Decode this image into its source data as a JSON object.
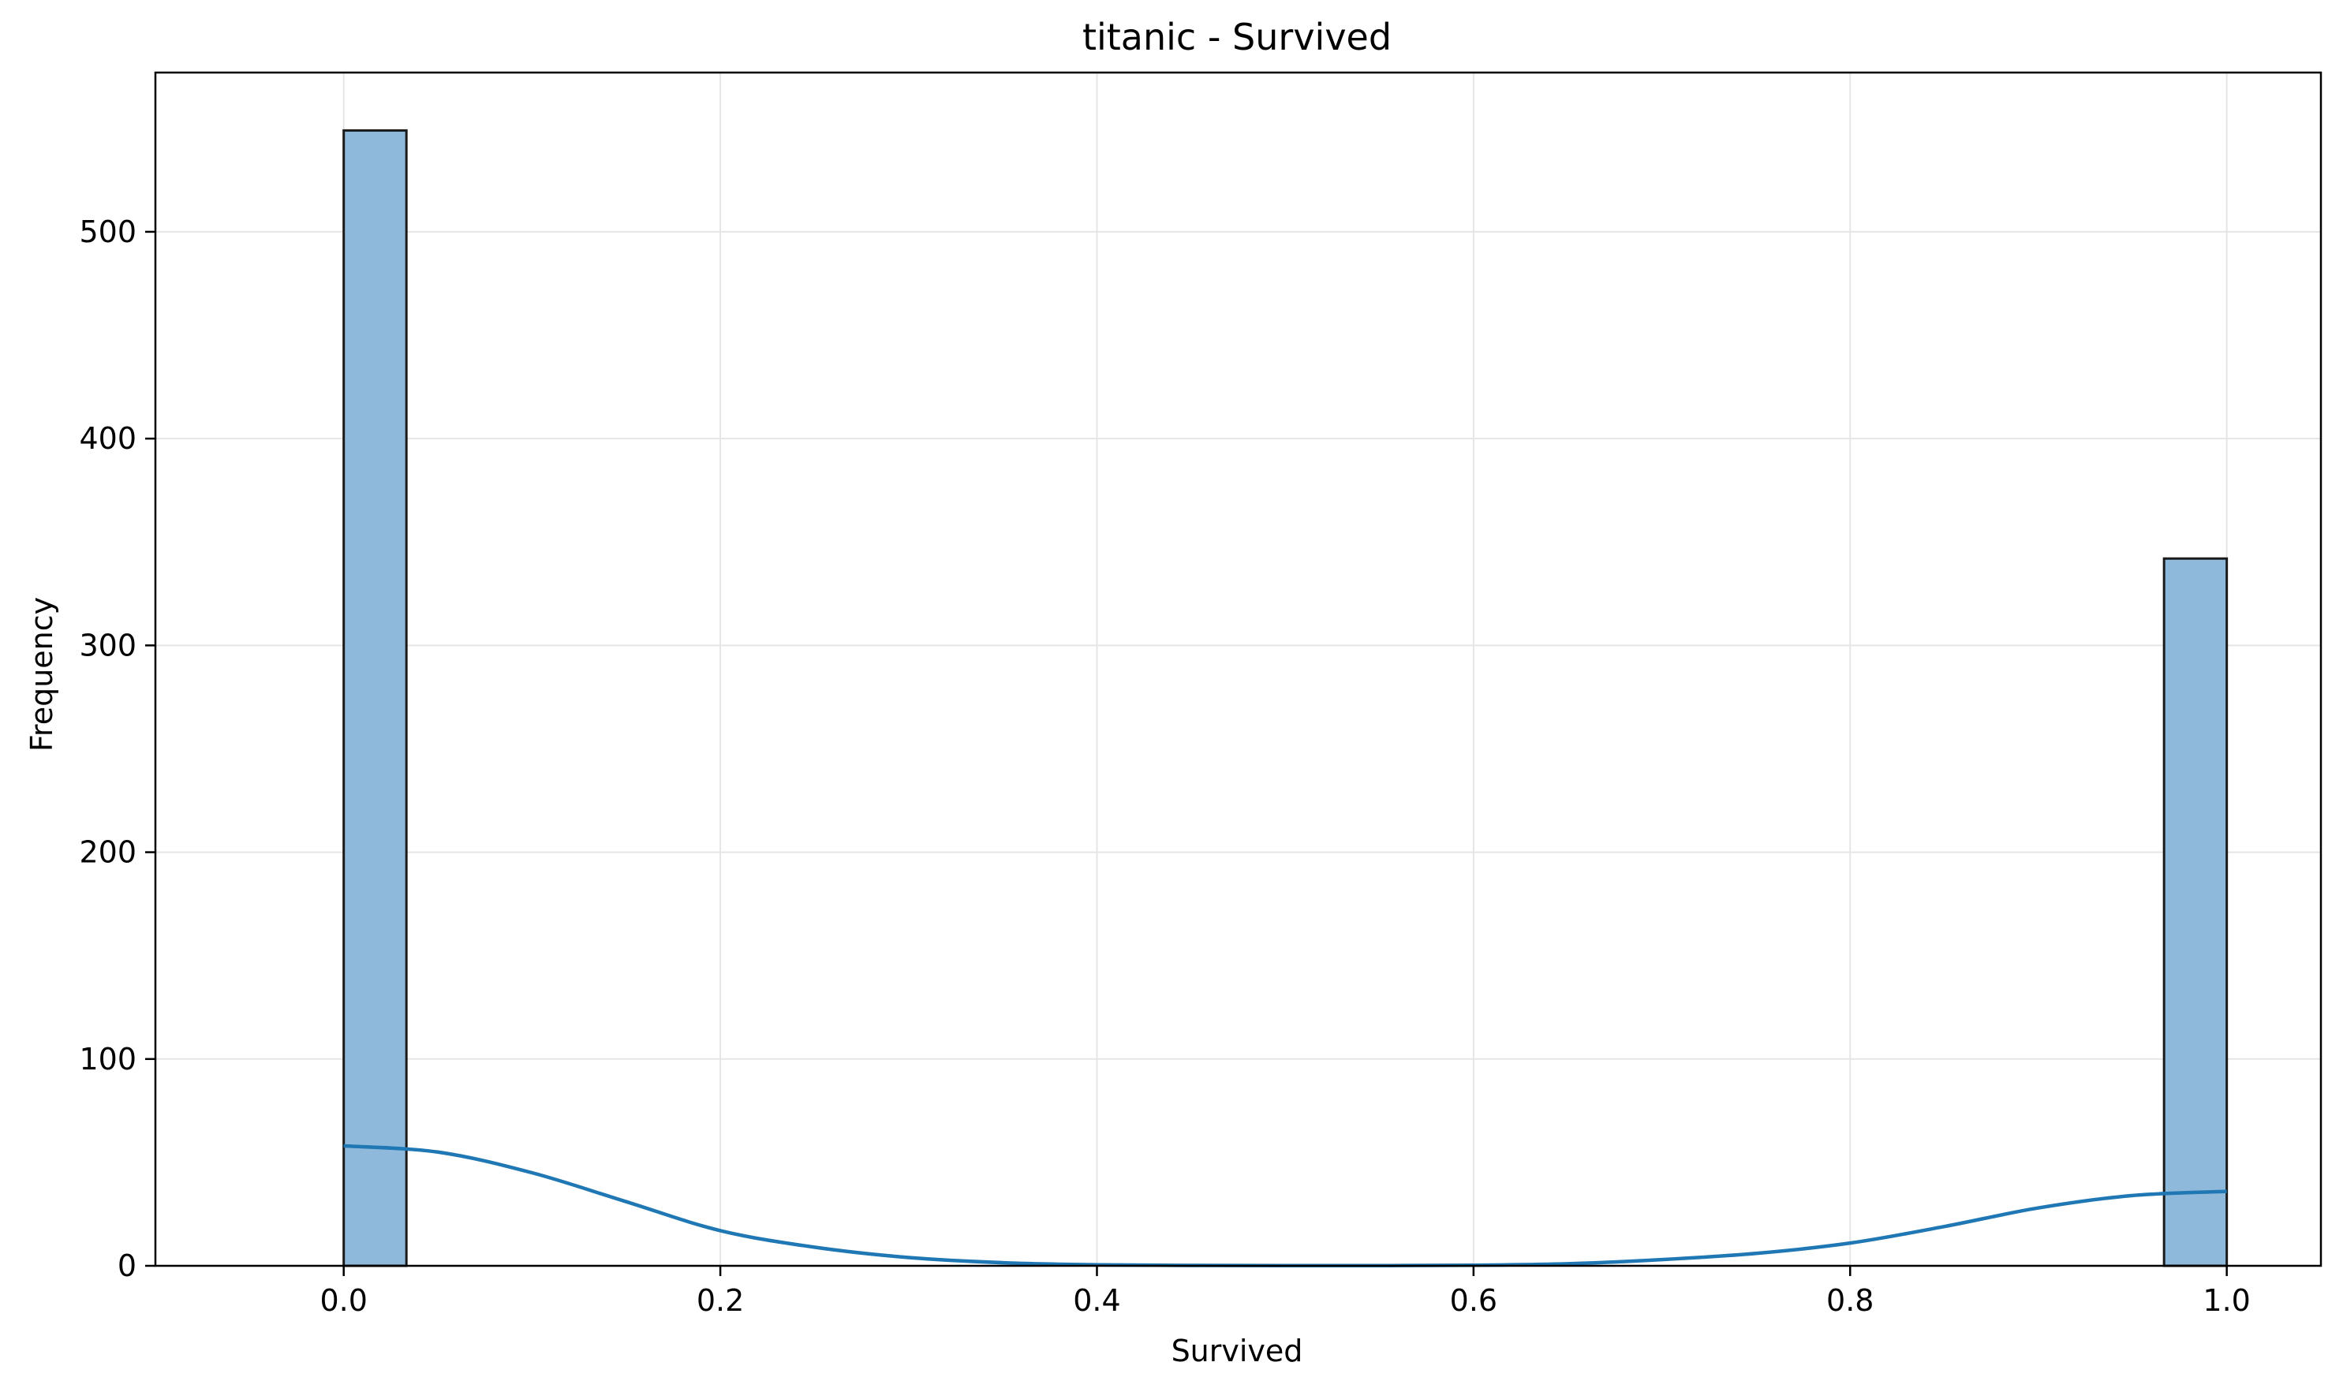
{
  "chart_data": {
    "type": "bar",
    "subtype": "histogram-with-kde",
    "title": "titanic - Survived",
    "xlabel": "Survived",
    "ylabel": "Frequency",
    "xlim": [
      -0.1,
      1.05
    ],
    "ylim": [
      0,
      577
    ],
    "xticks": [
      0.0,
      0.2,
      0.4,
      0.6,
      0.8,
      1.0
    ],
    "xtick_labels": [
      "0.0",
      "0.2",
      "0.4",
      "0.6",
      "0.8",
      "1.0"
    ],
    "yticks": [
      0,
      100,
      200,
      300,
      400,
      500
    ],
    "ytick_labels": [
      "0",
      "100",
      "200",
      "300",
      "400",
      "500"
    ],
    "grid": true,
    "colors": {
      "bar_fill": "#8fb9da",
      "bar_edge": "#1a1a1a",
      "kde_line": "#1f77b4",
      "grid": "#e5e5e5"
    },
    "bins": [
      {
        "x0": 0.0,
        "x1": 0.0333,
        "count": 549
      },
      {
        "x0": 0.9667,
        "x1": 1.0,
        "count": 342
      }
    ],
    "kde": {
      "x": [
        0.0,
        0.05,
        0.1,
        0.15,
        0.2,
        0.25,
        0.3,
        0.35,
        0.4,
        0.45,
        0.5,
        0.55,
        0.6,
        0.65,
        0.7,
        0.75,
        0.8,
        0.85,
        0.9,
        0.95,
        1.0
      ],
      "y": [
        58,
        55,
        45,
        31,
        17,
        9,
        4,
        1.5,
        0.5,
        0.2,
        0.1,
        0.1,
        0.3,
        1,
        3,
        6,
        11,
        19,
        28,
        34,
        36
      ]
    }
  }
}
